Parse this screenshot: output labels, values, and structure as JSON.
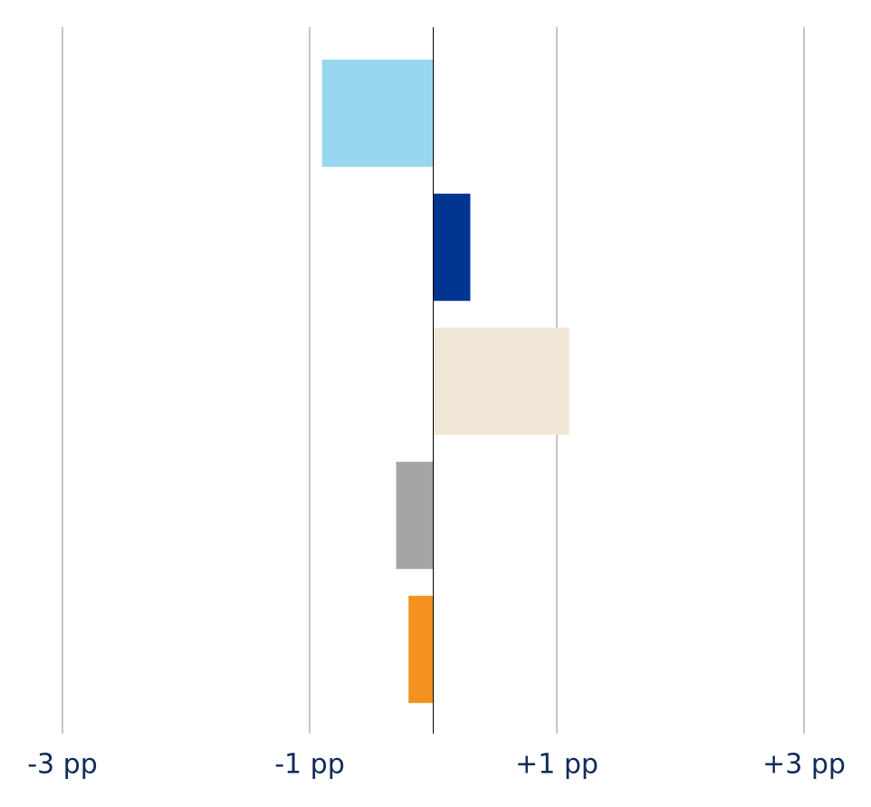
{
  "chart_data": {
    "type": "bar",
    "orientation": "horizontal",
    "categories": [
      null,
      null,
      null,
      null,
      null
    ],
    "values": [
      -0.9,
      0.3,
      1.1,
      -0.3,
      -0.2
    ],
    "colors": [
      "#97d8ef",
      "#003591",
      "#f1e7d6",
      "#a5a5a5",
      "#f39220"
    ],
    "xlim": [
      -3,
      3
    ],
    "xticks": [
      {
        "value": -3,
        "label": "-3 pp"
      },
      {
        "value": -1,
        "label": "-1 pp"
      },
      {
        "value": 1,
        "label": "+1 pp"
      },
      {
        "value": 3,
        "label": "+3 pp"
      }
    ],
    "grid": true
  }
}
